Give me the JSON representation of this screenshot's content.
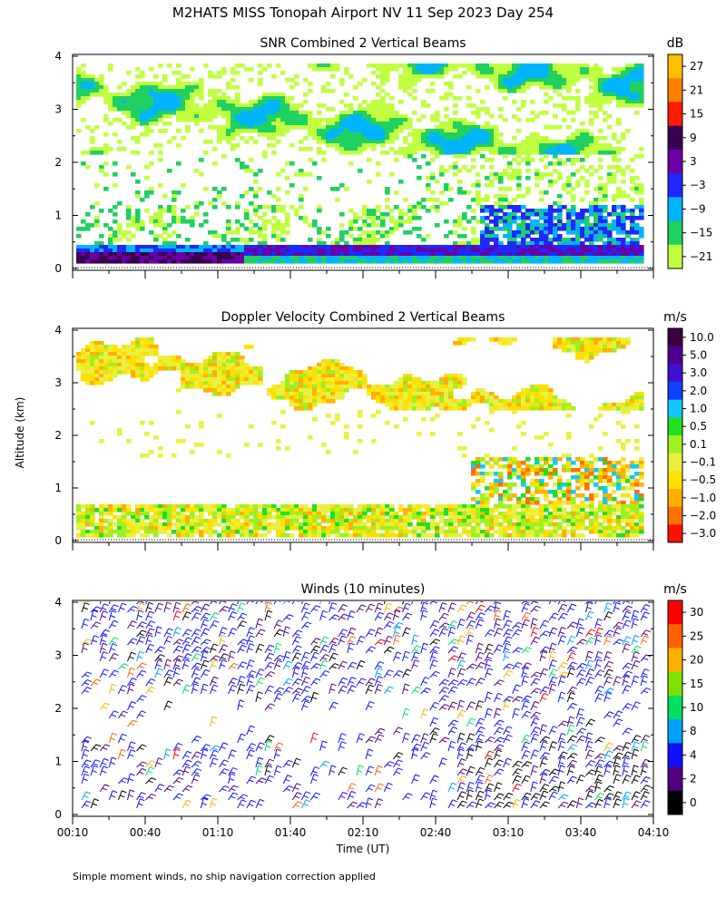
{
  "figure": {
    "title": "M2HATS MISS Tonopah Airport NV  11 Sep 2023 Day 254",
    "ylabel": "Altitude (km)",
    "xlabel": "Time (UT)",
    "footnote": "Simple moment winds, no ship navigation correction applied"
  },
  "chart_data": [
    {
      "type": "heatmap",
      "title": "SNR Combined 2 Vertical Beams",
      "xlabel": "Time (UT)",
      "ylabel": "Altitude (km)",
      "x_ticks": [
        "00:10",
        "00:40",
        "01:10",
        "01:40",
        "02:10",
        "02:40",
        "03:10",
        "03:40",
        "04:10"
      ],
      "y_ticks": [
        "0",
        "1",
        "2",
        "3",
        "4"
      ],
      "ylim": [
        0,
        4
      ],
      "colorbar": {
        "unit": "dB",
        "labels": [
          "27",
          "21",
          "15",
          "9",
          "3",
          "−3",
          "−9",
          "−15",
          "−21"
        ],
        "colors": [
          "#ffc000",
          "#ff8000",
          "#ff1a00",
          "#3a0050",
          "#6a00a8",
          "#1e28ff",
          "#00b4ff",
          "#20d060",
          "#c0ff40"
        ]
      },
      "layers": [
        {
          "alt_km": [
            0.1,
            0.5
          ],
          "snr_db": [
            3,
            12
          ],
          "note_time": "00:10–01:20"
        },
        {
          "alt_km": [
            0.4,
            0.8
          ],
          "snr_db": [
            -9,
            3
          ],
          "note_time": "01:20–04:10"
        },
        {
          "alt_km": [
            2.3,
            3.9
          ],
          "snr_db": [
            -21,
            -9
          ],
          "note_time": "00:10–04:10"
        }
      ]
    },
    {
      "type": "heatmap",
      "title": "Doppler Velocity Combined 2 Vertical Beams",
      "xlabel": "Time (UT)",
      "ylabel": "Altitude (km)",
      "x_ticks": [
        "00:10",
        "00:40",
        "01:10",
        "01:40",
        "02:10",
        "02:40",
        "03:10",
        "03:40",
        "04:10"
      ],
      "y_ticks": [
        "0",
        "1",
        "2",
        "3",
        "4"
      ],
      "ylim": [
        0,
        4
      ],
      "colorbar": {
        "unit": "m/s",
        "labels": [
          "10.0",
          "5.0",
          "3.0",
          "2.0",
          "1.0",
          "0.5",
          "0.1",
          "−0.1",
          "−0.5",
          "−1.0",
          "−2.0",
          "−3.0"
        ],
        "colors": [
          "#3a0040",
          "#500090",
          "#4010d0",
          "#1040ff",
          "#10c8ff",
          "#20e020",
          "#a0f020",
          "#e8f040",
          "#ffe000",
          "#ffb000",
          "#ff7000",
          "#ff1000"
        ]
      }
    },
    {
      "type": "scatter",
      "title": "Winds (10 minutes)",
      "xlabel": "Time (UT)",
      "ylabel": "Altitude (km)",
      "x_ticks": [
        "00:10",
        "00:40",
        "01:10",
        "01:40",
        "02:10",
        "02:40",
        "03:10",
        "03:40",
        "04:10"
      ],
      "y_ticks": [
        "0",
        "1",
        "2",
        "3",
        "4"
      ],
      "ylim": [
        0,
        4
      ],
      "colorbar": {
        "unit": "m/s",
        "labels": [
          "30",
          "25",
          "20",
          "15",
          "10",
          "8",
          "4",
          "2",
          "0"
        ],
        "colors": [
          "#ff0000",
          "#ff6000",
          "#ffb000",
          "#80e000",
          "#00e060",
          "#00a0ff",
          "#1010ff",
          "#500080",
          "#000000"
        ]
      }
    }
  ]
}
